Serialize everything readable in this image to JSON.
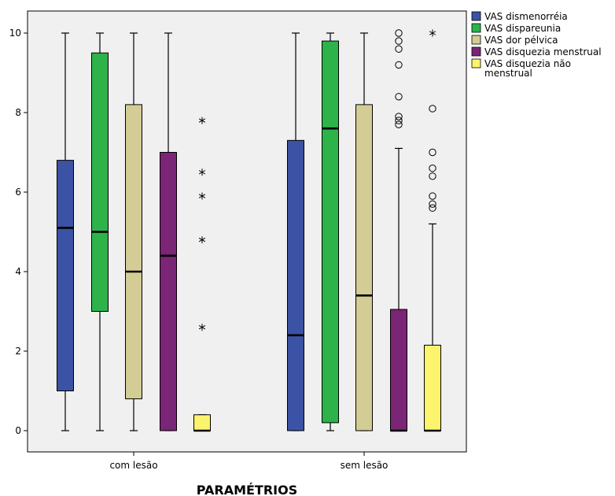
{
  "chart_data": {
    "type": "boxplot",
    "title": "",
    "xlabel": "PARAMÉTRIOS",
    "ylabel": "",
    "ylim": [
      -0.5,
      10.5
    ],
    "yticks": [
      0,
      2,
      4,
      6,
      8,
      10
    ],
    "grid": false,
    "legend_position": "right",
    "categories": [
      "com lesão",
      "sem lesão"
    ],
    "plot_background": "#f0f0f0",
    "series": [
      {
        "name": "VAS dismenorréia",
        "color": "#3c52a4",
        "boxes": [
          {
            "min": 0,
            "q1": 1.0,
            "median": 5.1,
            "q3": 6.8,
            "max": 10,
            "outliers": [],
            "extremes": []
          },
          {
            "min": 0,
            "q1": 0,
            "median": 2.4,
            "q3": 7.3,
            "max": 10,
            "outliers": [],
            "extremes": []
          }
        ]
      },
      {
        "name": "VAS dispareunia",
        "color": "#2db34a",
        "boxes": [
          {
            "min": 0,
            "q1": 3.0,
            "median": 5.0,
            "q3": 9.5,
            "max": 10,
            "outliers": [],
            "extremes": []
          },
          {
            "min": 0,
            "q1": 0.2,
            "median": 7.6,
            "q3": 9.8,
            "max": 10,
            "outliers": [],
            "extremes": []
          }
        ]
      },
      {
        "name": "VAS dor pélvica",
        "color": "#d3cc95",
        "boxes": [
          {
            "min": 0,
            "q1": 0.8,
            "median": 4.0,
            "q3": 8.2,
            "max": 10,
            "outliers": [],
            "extremes": []
          },
          {
            "min": 0,
            "q1": 0,
            "median": 3.4,
            "q3": 8.2,
            "max": 10,
            "outliers": [],
            "extremes": []
          }
        ]
      },
      {
        "name": "VAS disquezia menstrual",
        "color": "#7a2575",
        "boxes": [
          {
            "min": 0,
            "q1": 0,
            "median": 4.4,
            "q3": 7.0,
            "max": 10,
            "outliers": [],
            "extremes": []
          },
          {
            "min": 0,
            "q1": 0,
            "median": 0,
            "q3": 3.05,
            "max": 7.1,
            "outliers": [
              10,
              9.8,
              9.6,
              9.2,
              8.4,
              7.9,
              7.8,
              7.7
            ],
            "extremes": []
          }
        ]
      },
      {
        "name": "VAS disquezia não menstrual",
        "name_lines": [
          "VAS disquezia não",
          "menstrual"
        ],
        "color": "#fbf46c",
        "boxes": [
          {
            "min": 0,
            "q1": 0,
            "median": 0,
            "q3": 0.4,
            "max": 0.4,
            "outliers": [],
            "extremes": [
              7.8,
              6.5,
              5.9,
              4.8,
              2.6
            ]
          },
          {
            "min": 0,
            "q1": 0,
            "median": 0,
            "q3": 2.15,
            "max": 5.2,
            "outliers": [
              8.1,
              7.0,
              6.6,
              6.4,
              5.9,
              5.7,
              5.6
            ],
            "extremes": [
              10
            ]
          }
        ]
      }
    ]
  }
}
